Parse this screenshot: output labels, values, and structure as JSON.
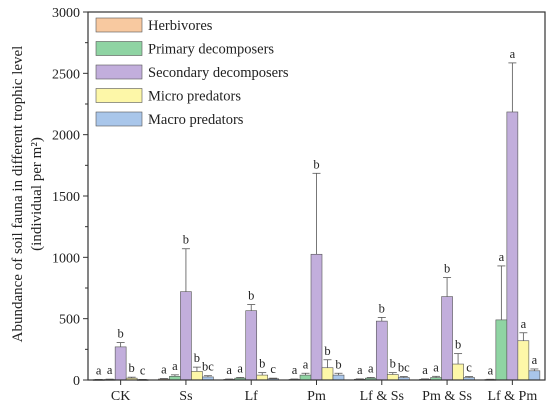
{
  "chart_data": {
    "type": "bar",
    "title": "",
    "xlabel": "",
    "ylabel_line1": "Abundance of soil fauna in different trophic level",
    "ylabel_line2": "(individual per m²)",
    "ylim": [
      0,
      3000
    ],
    "yticks": [
      "0",
      "500",
      "1000",
      "1500",
      "2000",
      "2500",
      "3000"
    ],
    "categories": [
      "CK",
      "Ss",
      "Lf",
      "Pm",
      "Lf & Ss",
      "Pm & Ss",
      "Lf & Pm"
    ],
    "legend_position": "top-left",
    "series": [
      {
        "name": "Herbivores",
        "color": "#f8c9a0",
        "values": [
          3,
          8,
          5,
          5,
          6,
          6,
          4
        ],
        "errors": [
          2,
          4,
          3,
          3,
          3,
          3,
          2
        ],
        "letters": [
          "a",
          "a",
          "a",
          "a",
          "a",
          "a",
          "a"
        ]
      },
      {
        "name": "Primary decomposers",
        "color": "#8fd4a3",
        "values": [
          4,
          30,
          15,
          40,
          15,
          20,
          490
        ],
        "errors": [
          3,
          12,
          6,
          15,
          6,
          10,
          440
        ],
        "letters": [
          "a",
          "a",
          "a",
          "a",
          "a",
          "a",
          "a"
        ]
      },
      {
        "name": "Secondary decomposers",
        "color": "#c2aedc",
        "values": [
          270,
          720,
          565,
          1025,
          480,
          680,
          2185
        ],
        "errors": [
          35,
          350,
          50,
          660,
          30,
          155,
          400
        ],
        "letters": [
          "b",
          "b",
          "b",
          "b",
          "b",
          "b",
          "a"
        ]
      },
      {
        "name": "Micro predators",
        "color": "#fdf7a8",
        "values": [
          15,
          70,
          40,
          100,
          45,
          130,
          320
        ],
        "errors": [
          8,
          35,
          20,
          65,
          15,
          85,
          65
        ],
        "letters": [
          "b",
          "b",
          "b",
          "b",
          "b",
          "b",
          "a"
        ]
      },
      {
        "name": "Macro predators",
        "color": "#a9c6ea",
        "values": [
          3,
          25,
          10,
          40,
          20,
          20,
          75
        ],
        "errors": [
          2,
          10,
          5,
          15,
          8,
          8,
          15
        ],
        "letters": [
          "c",
          "bc",
          "c",
          "b",
          "bc",
          "c",
          "a"
        ]
      }
    ]
  }
}
